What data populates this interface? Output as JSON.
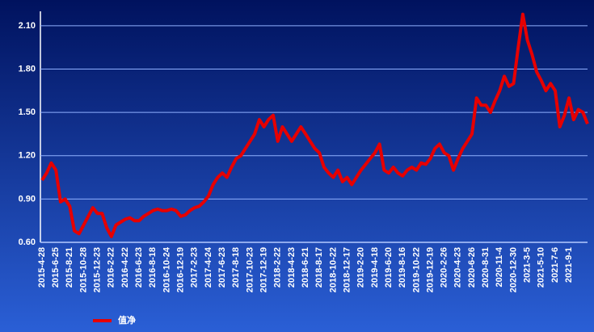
{
  "chart_data": {
    "type": "line",
    "categories": [
      "2015-4-28",
      null,
      null,
      "2015-6-25",
      null,
      null,
      "2015-8-21",
      null,
      null,
      "2015-10-28",
      null,
      null,
      "2015-12-23",
      null,
      null,
      "2016-2-22",
      null,
      null,
      "2016-4-22",
      null,
      null,
      "2016-6-23",
      null,
      null,
      "2016-8-18",
      null,
      null,
      "2016-10-24",
      null,
      null,
      "2016-12-19",
      null,
      null,
      "2017-2-23",
      null,
      null,
      "2017-4-24",
      null,
      null,
      "2017-6-23",
      null,
      null,
      "2017-8-18",
      null,
      null,
      "2017-10-23",
      null,
      null,
      "2017-12-19",
      null,
      null,
      "2018-2-22",
      null,
      null,
      "2018-4-23",
      null,
      null,
      "2018-6-21",
      null,
      null,
      "2018-8-17",
      null,
      null,
      "2018-10-22",
      null,
      null,
      "2018-12-17",
      null,
      null,
      "2019-2-20",
      null,
      null,
      "2019-4-18",
      null,
      null,
      "2019-6-20",
      null,
      null,
      "2019-8-16",
      null,
      null,
      "2019-10-22",
      null,
      null,
      "2019-12-19",
      null,
      null,
      "2020-2-26",
      null,
      null,
      "2020-4-23",
      null,
      null,
      "2020-6-26",
      null,
      null,
      "2020-8-31",
      null,
      null,
      "2020-11-4",
      null,
      null,
      "2020-12-30",
      null,
      null,
      "2021-3-5",
      null,
      null,
      "2021-5-10",
      null,
      null,
      "2021-7-6",
      null,
      null,
      "2021-9-1",
      null,
      null,
      null,
      null
    ],
    "series": [
      {
        "name": "值净",
        "color": "#e60000",
        "values": [
          1.03,
          1.08,
          1.15,
          1.1,
          0.88,
          0.9,
          0.85,
          0.68,
          0.66,
          0.72,
          0.78,
          0.84,
          0.8,
          0.8,
          0.7,
          0.64,
          0.72,
          0.74,
          0.76,
          0.77,
          0.75,
          0.75,
          0.78,
          0.8,
          0.82,
          0.83,
          0.82,
          0.82,
          0.83,
          0.82,
          0.78,
          0.79,
          0.82,
          0.84,
          0.85,
          0.88,
          0.92,
          1.0,
          1.05,
          1.08,
          1.05,
          1.12,
          1.18,
          1.2,
          1.25,
          1.3,
          1.35,
          1.45,
          1.4,
          1.45,
          1.48,
          1.3,
          1.4,
          1.35,
          1.3,
          1.35,
          1.4,
          1.35,
          1.3,
          1.25,
          1.22,
          1.12,
          1.08,
          1.05,
          1.1,
          1.02,
          1.05,
          1.0,
          1.05,
          1.1,
          1.14,
          1.18,
          1.22,
          1.28,
          1.1,
          1.08,
          1.12,
          1.08,
          1.06,
          1.1,
          1.12,
          1.1,
          1.15,
          1.14,
          1.18,
          1.25,
          1.28,
          1.22,
          1.2,
          1.1,
          1.18,
          1.25,
          1.3,
          1.35,
          1.6,
          1.55,
          1.55,
          1.5,
          1.58,
          1.65,
          1.75,
          1.68,
          1.7,
          1.95,
          2.18,
          2.0,
          1.9,
          1.78,
          1.72,
          1.65,
          1.7,
          1.65,
          1.4,
          1.48,
          1.6,
          1.45,
          1.52,
          1.5,
          1.42
        ]
      }
    ],
    "ylim": [
      0.6,
      2.2
    ],
    "yticks": [
      {
        "value": 0.6,
        "label": "0.60"
      },
      {
        "value": 0.9,
        "label": "0.90"
      },
      {
        "value": 1.2,
        "label": "1.20"
      },
      {
        "value": 1.5,
        "label": "1.50"
      },
      {
        "value": 1.8,
        "label": "1.80"
      },
      {
        "value": 2.1,
        "label": "2.10"
      }
    ],
    "grid": true
  }
}
